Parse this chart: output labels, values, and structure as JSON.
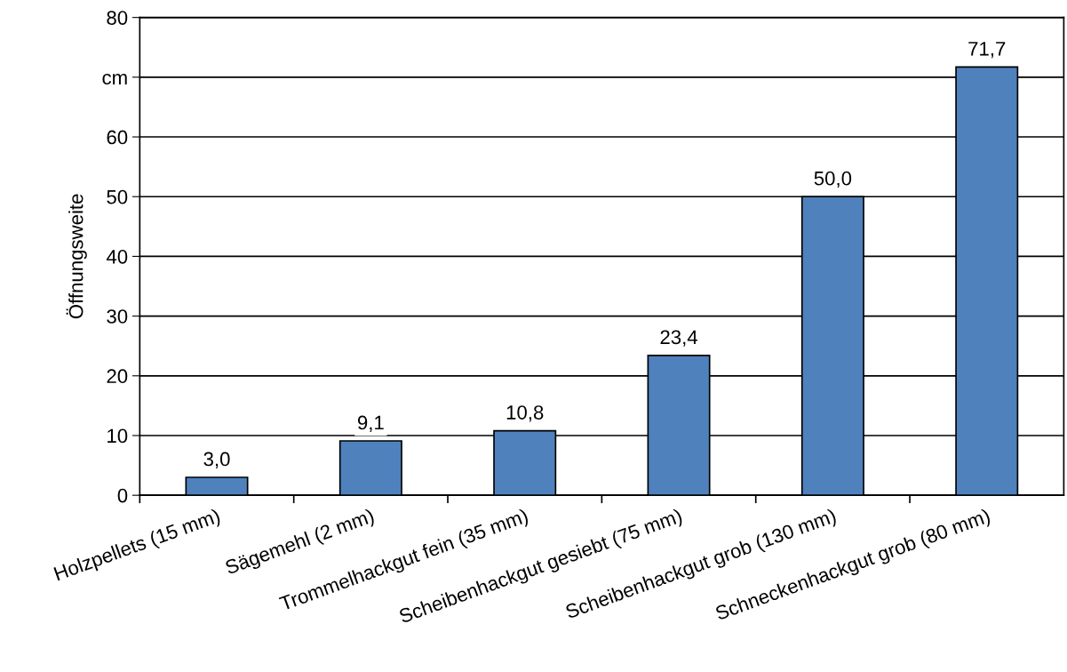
{
  "chart_data": {
    "type": "bar",
    "ylabel": "Öffnungsweite",
    "categories": [
      "Holzpellets (15 mm)",
      "Sägemehl (2 mm)",
      "Trommelhackgut fein (35 mm)",
      "Scheibenhackgut gesiebt (75 mm)",
      "Scheibenhackgut grob (130 mm)",
      "Schneckenhackgut grob (80 mm)"
    ],
    "values": [
      3.0,
      9.1,
      10.8,
      23.4,
      50.0,
      71.7
    ],
    "value_labels": [
      "3,0",
      "9,1",
      "10,8",
      "23,4",
      "50,0",
      "71,7"
    ],
    "color": "#4f81bd",
    "ylim": [
      0,
      80
    ],
    "yticks": [
      0,
      10,
      20,
      30,
      40,
      50,
      60,
      {
        "value": 70,
        "label": "cm"
      },
      80
    ],
    "grid": "y"
  }
}
